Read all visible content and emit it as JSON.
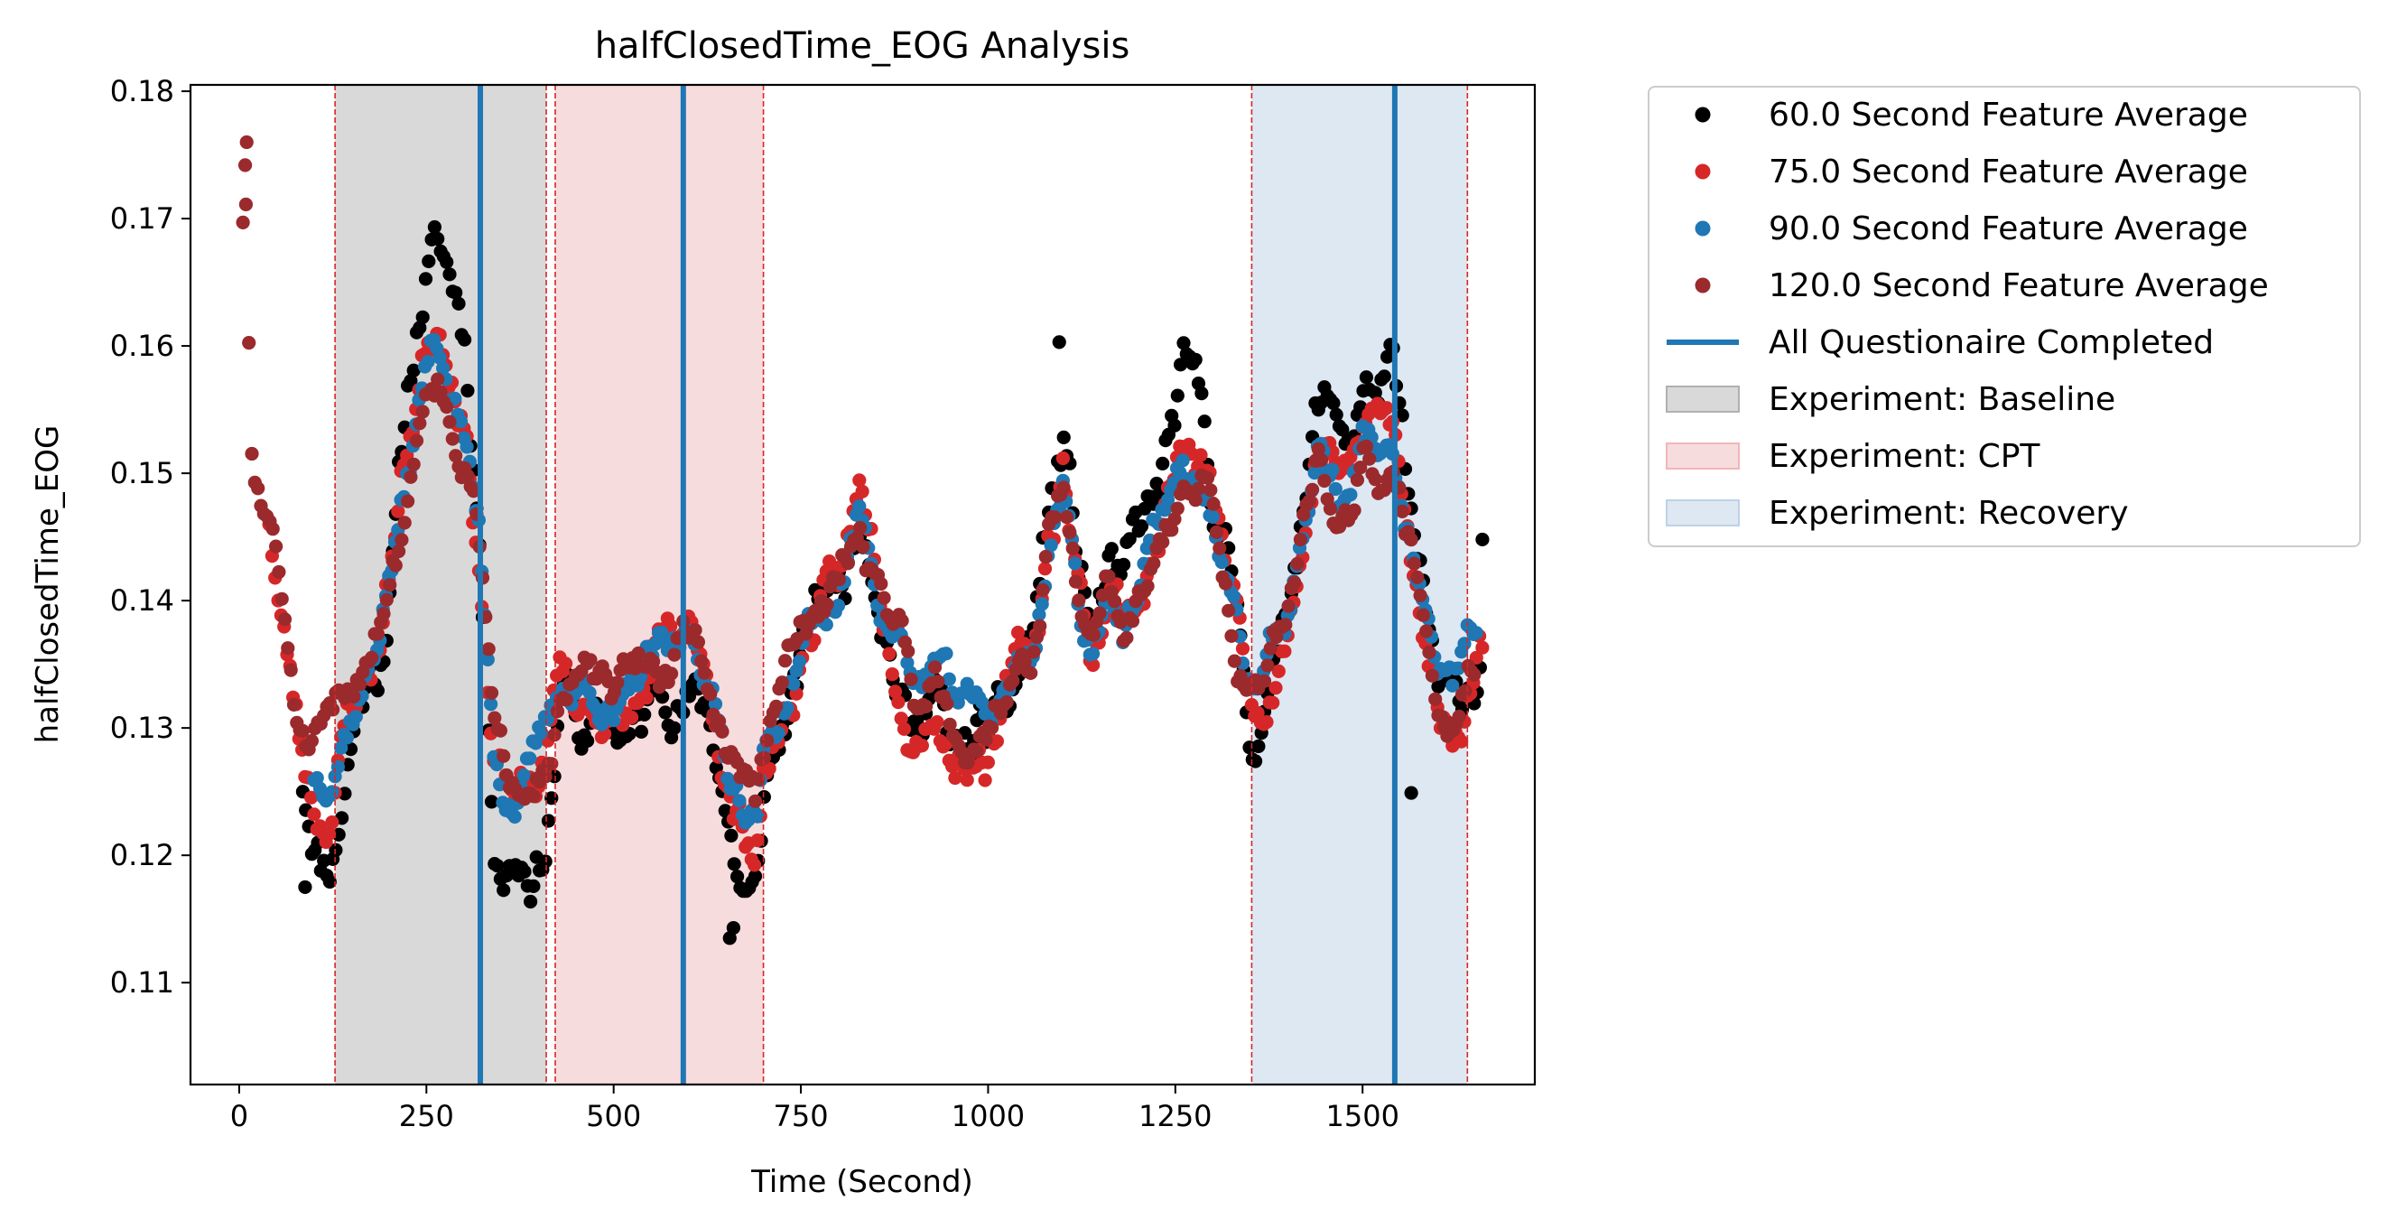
{
  "chart_data": {
    "type": "scatter",
    "title": "halfClosedTime_EOG Analysis",
    "xlabel": "Time (Second)",
    "ylabel": "halfClosedTime_EOG",
    "xlim": [
      -65,
      1730
    ],
    "ylim": [
      0.102,
      0.1805
    ],
    "xticks": [
      0,
      250,
      500,
      750,
      1000,
      1250,
      1500
    ],
    "yticks": [
      0.11,
      0.12,
      0.13,
      0.14,
      0.15,
      0.16,
      0.17,
      0.18
    ],
    "grid": false,
    "legend_position": "outside-right",
    "spans": [
      {
        "label": "Experiment: Baseline",
        "x0": 128,
        "x1": 410,
        "color": "#d9d9d9",
        "edge": "#b0b0b0"
      },
      {
        "label": "Experiment: CPT",
        "x0": 422,
        "x1": 700,
        "color": "#f7dcdd",
        "edge": "#f1b6b8"
      },
      {
        "label": "Experiment: Recovery",
        "x0": 1352,
        "x1": 1640,
        "color": "#dde8f2",
        "edge": "#bcd2e6"
      }
    ],
    "boundary_lines": [
      128,
      410,
      422,
      700,
      1352,
      1640
    ],
    "boundary_color": "#d62728",
    "questionnaire_lines": {
      "label": "All Questionaire Completed",
      "x": [
        322,
        593,
        1543
      ],
      "color": "#1f77b4"
    },
    "series": [
      {
        "name": "60.0 Second Feature Average",
        "color": "#000000",
        "x0": 85,
        "x1": 1660,
        "amp": 1.35,
        "noise": 0.0022,
        "seed": 11
      },
      {
        "name": "75.0 Second Feature Average",
        "color": "#d62728",
        "x0": 40,
        "x1": 1660,
        "amp": 1.1,
        "noise": 0.0018,
        "seed": 23
      },
      {
        "name": "90.0 Second Feature Average",
        "color": "#1f77b4",
        "x0": 100,
        "x1": 1655,
        "amp": 0.95,
        "noise": 0.0014,
        "seed": 37
      },
      {
        "name": "120.0 Second Feature Average",
        "color": "#9b2a2d",
        "x0": 5,
        "x1": 1650,
        "amp": 0.9,
        "noise": 0.0014,
        "seed": 51
      }
    ],
    "trend": [
      [
        5,
        0.174
      ],
      [
        10,
        0.175
      ],
      [
        15,
        0.154
      ],
      [
        20,
        0.151
      ],
      [
        30,
        0.148
      ],
      [
        40,
        0.147
      ],
      [
        50,
        0.142
      ],
      [
        60,
        0.137
      ],
      [
        70,
        0.133
      ],
      [
        80,
        0.129
      ],
      [
        95,
        0.127
      ],
      [
        110,
        0.126
      ],
      [
        125,
        0.127
      ],
      [
        140,
        0.13
      ],
      [
        160,
        0.134
      ],
      [
        185,
        0.138
      ],
      [
        210,
        0.145
      ],
      [
        230,
        0.153
      ],
      [
        250,
        0.16
      ],
      [
        265,
        0.161
      ],
      [
        280,
        0.158
      ],
      [
        300,
        0.155
      ],
      [
        320,
        0.146
      ],
      [
        330,
        0.137
      ],
      [
        340,
        0.128
      ],
      [
        355,
        0.125
      ],
      [
        375,
        0.126
      ],
      [
        395,
        0.127
      ],
      [
        410,
        0.128
      ],
      [
        430,
        0.134
      ],
      [
        460,
        0.133
      ],
      [
        500,
        0.131
      ],
      [
        540,
        0.133
      ],
      [
        580,
        0.135
      ],
      [
        600,
        0.136
      ],
      [
        620,
        0.134
      ],
      [
        640,
        0.13
      ],
      [
        660,
        0.126
      ],
      [
        675,
        0.124
      ],
      [
        690,
        0.122
      ],
      [
        700,
        0.127
      ],
      [
        730,
        0.133
      ],
      [
        760,
        0.137
      ],
      [
        800,
        0.141
      ],
      [
        830,
        0.146
      ],
      [
        860,
        0.141
      ],
      [
        880,
        0.138
      ],
      [
        900,
        0.132
      ],
      [
        930,
        0.136
      ],
      [
        950,
        0.131
      ],
      [
        970,
        0.13
      ],
      [
        1000,
        0.131
      ],
      [
        1030,
        0.133
      ],
      [
        1060,
        0.136
      ],
      [
        1080,
        0.145
      ],
      [
        1100,
        0.149
      ],
      [
        1120,
        0.14
      ],
      [
        1140,
        0.137
      ],
      [
        1160,
        0.142
      ],
      [
        1180,
        0.138
      ],
      [
        1200,
        0.141
      ],
      [
        1230,
        0.146
      ],
      [
        1260,
        0.15
      ],
      [
        1290,
        0.149
      ],
      [
        1310,
        0.143
      ],
      [
        1330,
        0.138
      ],
      [
        1350,
        0.133
      ],
      [
        1370,
        0.134
      ],
      [
        1390,
        0.137
      ],
      [
        1420,
        0.146
      ],
      [
        1440,
        0.152
      ],
      [
        1460,
        0.15
      ],
      [
        1480,
        0.149
      ],
      [
        1500,
        0.153
      ],
      [
        1520,
        0.152
      ],
      [
        1540,
        0.151
      ],
      [
        1560,
        0.145
      ],
      [
        1580,
        0.139
      ],
      [
        1600,
        0.132
      ],
      [
        1620,
        0.131
      ],
      [
        1640,
        0.135
      ],
      [
        1660,
        0.136
      ]
    ],
    "outliers": [
      {
        "x": 10,
        "y": 0.176,
        "color": "#9b2a2d"
      },
      {
        "x": 8,
        "y": 0.1742,
        "color": "#9b2a2d"
      },
      {
        "x": 1660,
        "y": 0.1448,
        "color": "#000000"
      },
      {
        "x": 1095,
        "y": 0.1603,
        "color": "#000000"
      },
      {
        "x": 655,
        "y": 0.1135,
        "color": "#000000"
      },
      {
        "x": 660,
        "y": 0.1143,
        "color": "#000000"
      },
      {
        "x": 88,
        "y": 0.1175,
        "color": "#000000"
      },
      {
        "x": 1565,
        "y": 0.1249,
        "color": "#000000"
      }
    ]
  }
}
